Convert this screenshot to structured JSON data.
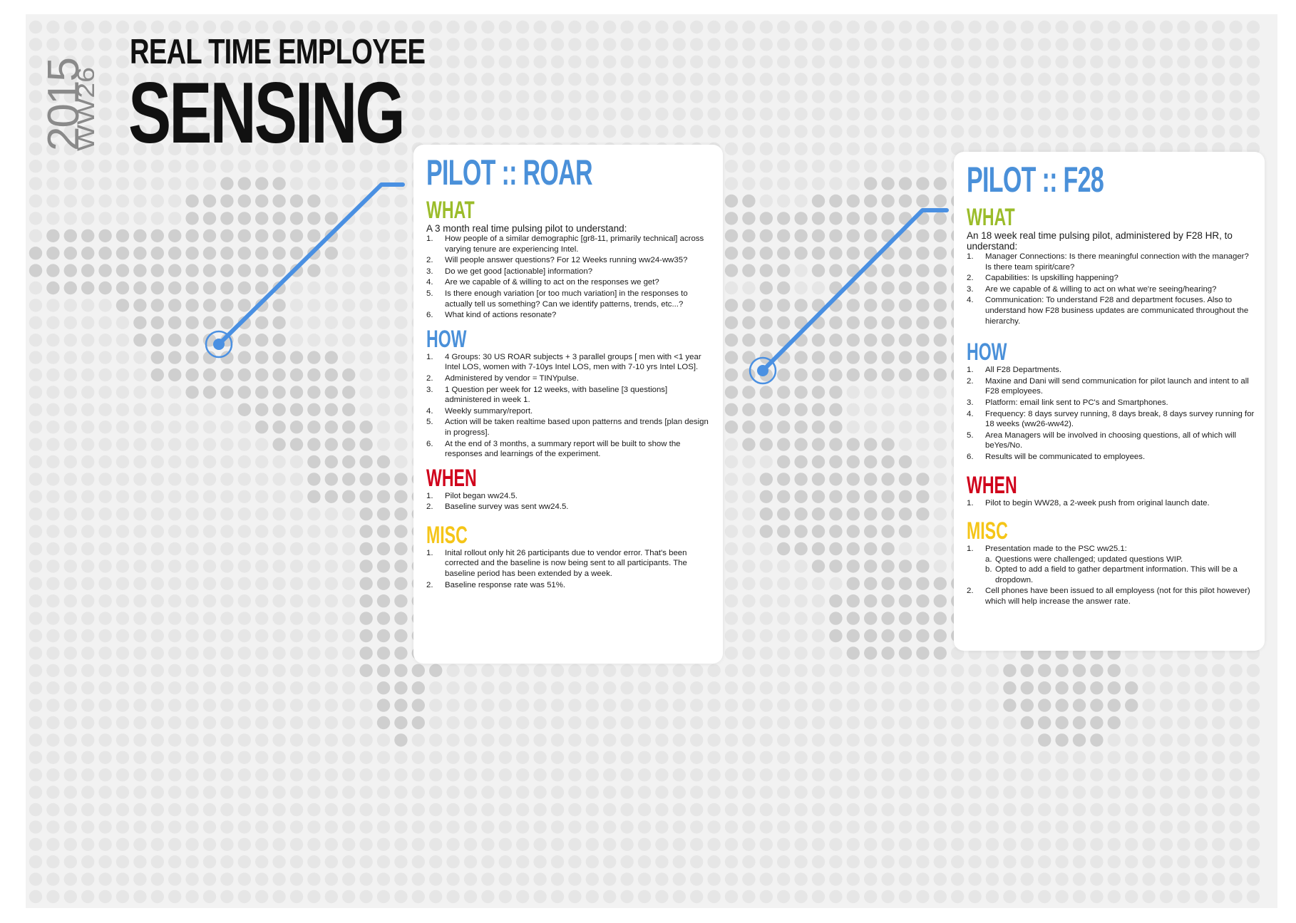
{
  "header": {
    "year": "2015",
    "week": "WW26",
    "title_line1": "REAL TIME EMPLOYEE",
    "title_line2": "SENSING"
  },
  "colors": {
    "dot": "#cfcfcf",
    "dot_light": "#e6e6e6",
    "background": "#ededed",
    "title_blue": "#4a90d9",
    "what": "#9bbc2a",
    "how": "#4a90d9",
    "when": "#d0021b",
    "misc": "#f5c518",
    "connector": "#4a90e2"
  },
  "roar": {
    "title": "PILOT :: ROAR",
    "what_heading": "WHAT",
    "what_intro": "A 3 month real time pulsing pilot to understand:",
    "what_items": [
      "How people of a similar demographic [gr8-11, primarily technical] across varying tenure are experiencing Intel.",
      "Will people answer questions? For 12 Weeks running ww24-ww35?",
      "Do we get good [actionable] information?",
      "Are we capable of & willing to act on the responses we get?",
      "Is there enough variation [or too much variation] in the responses to actually tell us something?  Can we identify patterns, trends, etc...?",
      "What kind of actions resonate?"
    ],
    "how_heading": "HOW",
    "how_items": [
      "4 Groups: 30 US ROAR subjects + 3 parallel groups [ men with <1 year Intel LOS, women with 7-10ys Intel LOS, men with 7-10 yrs Intel LOS].",
      "Administered by vendor = TINYpulse.",
      "1 Question per week for 12 weeks, with baseline [3 questions] administered in week 1.",
      "Weekly summary/report.",
      "Action will be taken realtime based upon patterns and trends [plan design in progress].",
      "At the end of 3 months, a summary report will be built to show the responses and learnings of the experiment."
    ],
    "when_heading": "WHEN",
    "when_items": [
      "Pilot began ww24.5.",
      "Baseline survey was sent ww24.5."
    ],
    "misc_heading": "MISC",
    "misc_items": [
      "Inital rollout only hit 26 participants due to vendor error. That's been corrected and the baseline is now being sent to all participants. The baseline period has been extended by a week.",
      "Baseline response rate was 51%."
    ]
  },
  "f28": {
    "title": "PILOT :: F28",
    "what_heading": "WHAT",
    "what_intro": "An 18 week real time pulsing pilot, administered by F28 HR, to understand:",
    "what_items": [
      "Manager Connections: Is there meaningful connection with the manager? Is there team spirit/care?",
      "Capabilities: Is upskilling happening?",
      "Are we capable of & willing to act on what we're seeing/hearing?",
      "Communication: To understand F28 and department focuses. Also to understand how F28 business updates are communicated throughout the hierarchy."
    ],
    "how_heading": "HOW",
    "how_items": [
      "All F28 Departments.",
      "Maxine and Dani will send communication for pilot launch and intent to all F28 employees.",
      "Platform: email link sent to PC's and Smartphones.",
      "Frequency: 8 days survey running, 8 days break, 8 days survey running for 18 weeks (ww26-ww42).",
      "Area Managers will be involved in choosing questions, all of which will beYes/No.",
      "Results will be communicated to employees."
    ],
    "when_heading": "WHEN",
    "when_items": [
      "Pilot to begin WW28, a 2-week push from original launch date."
    ],
    "misc_heading": "MISC",
    "misc_item1": "Presentation made to the PSC ww25.1:",
    "misc_sub_items": [
      "Questions were challenged; updated questions WIP.",
      "Opted to add a field to gather department information. This will be a dropdown."
    ],
    "misc_item2": "Cell phones have been issued to all employess (not for this pilot however) which will help increase the answer rate."
  }
}
